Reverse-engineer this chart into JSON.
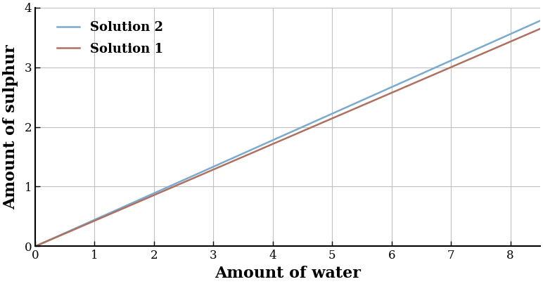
{
  "title": "",
  "xlabel": "Amount of water",
  "ylabel": "Amount of sulphur",
  "xlim": [
    0,
    8.5
  ],
  "ylim": [
    0,
    4.0
  ],
  "xticks": [
    0,
    1,
    2,
    3,
    4,
    5,
    6,
    7,
    8
  ],
  "yticks": [
    0,
    1,
    2,
    3,
    4
  ],
  "solution1_label": "Solution 1",
  "solution1_slope": 0.42857142857,
  "solution1_color": "#b07060",
  "solution2_label": "Solution 2",
  "solution2_slope": 0.44444444444,
  "solution2_color": "#7aabcf",
  "line_width": 1.8,
  "background_color": "#ffffff",
  "grid_color": "#c0c0c0",
  "legend_fontsize": 13,
  "axis_label_fontsize": 16,
  "tick_fontsize": 12,
  "spine_linewidth": 1.5
}
